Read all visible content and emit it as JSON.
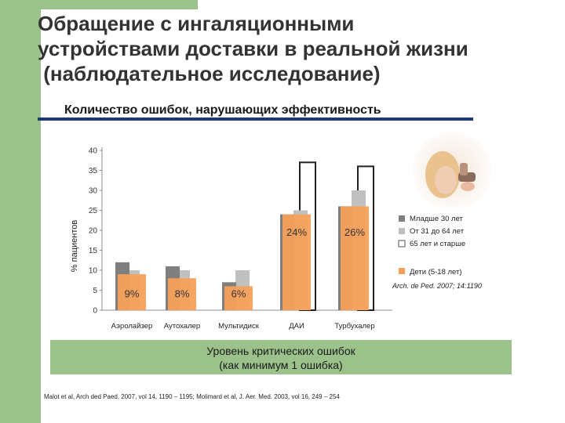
{
  "slide": {
    "title_line1": "Обращение с ингаляционными",
    "title_line2": "устройствами доставки в реальной жизни",
    "title_line3": " (наблюдательное исследование)",
    "subtitle": "Количество ошибок, нарушающих эффективность",
    "footer_line1": "Уровень критических ошибок",
    "footer_line2": "(как минимум 1 ошибка)",
    "reference": "Malot et al, Arch ded Paed. 2007, vol 14, 1190 – 1195; Molimard et al, J. Aer. Med. 2003, vol 16, 249 – 254",
    "photo_icon": "child-with-inhaler-photo"
  },
  "chart_data": {
    "type": "bar",
    "ylabel": "% пациентов",
    "ylim": [
      0,
      40
    ],
    "yticks": [
      0,
      5,
      10,
      15,
      20,
      25,
      30,
      35,
      40
    ],
    "categories": [
      "Аэролайзер",
      "Аутохалер",
      "Мультидиск",
      "ДАИ",
      "Турбухалер"
    ],
    "series": [
      {
        "name": "Младше 30 лет",
        "color": "#7f7f7f",
        "values": [
          12,
          11,
          7,
          24,
          26
        ]
      },
      {
        "name": "От 31 до 64 лет",
        "color": "#c0c0c0",
        "values": [
          10,
          10,
          10,
          25,
          30
        ]
      },
      {
        "name": "65 лет и старше",
        "color": "#ffffff",
        "values": [
          null,
          null,
          null,
          37,
          36
        ]
      },
      {
        "name": "Дети (5-18 лет)",
        "color": "#f5a05a",
        "values": [
          9,
          8,
          6,
          24,
          26
        ]
      }
    ],
    "data_labels": [
      "9%",
      "8%",
      "6%",
      "24%",
      "26%"
    ],
    "source_note": "Arch. de Ped. 2007; 14:1190"
  }
}
